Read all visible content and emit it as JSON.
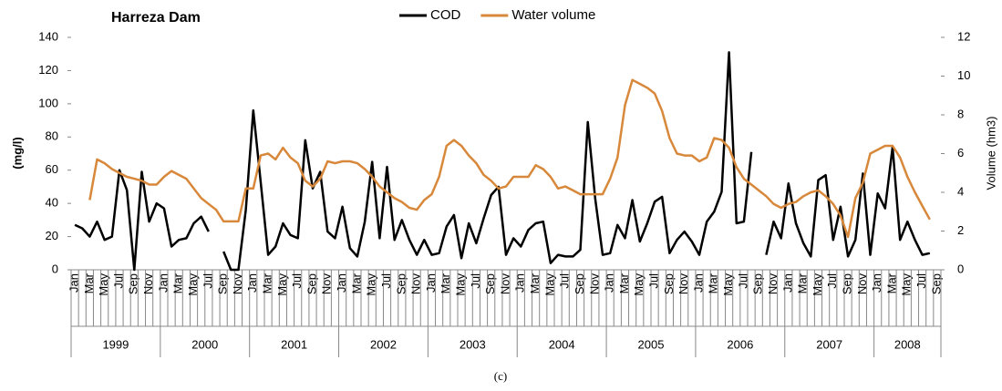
{
  "chart_data": {
    "type": "line",
    "title": "Harreza Dam",
    "caption": "(c)",
    "y_label": "(mg/l)",
    "y2_label": "Volume (hm3)",
    "categories": [
      "Jan",
      null,
      "Mar",
      null,
      "May",
      null,
      "Jul",
      null,
      "Sep",
      null,
      "Nov",
      null,
      "Jan",
      null,
      "Mar",
      null,
      "May",
      null,
      "Jul",
      null,
      "Sep",
      null,
      "Nov",
      null,
      "Jan",
      null,
      "Mar",
      null,
      "May",
      null,
      "Jul",
      null,
      "Sep",
      null,
      "Nov",
      null,
      "Jan",
      null,
      "Mar",
      null,
      "May",
      null,
      "Jul",
      null,
      "Sep",
      null,
      "Nov",
      null,
      "Jan",
      null,
      "Mar",
      null,
      "May",
      null,
      "Jul",
      null,
      "Sep",
      null,
      "Nov",
      null,
      "Jan",
      null,
      "Mar",
      null,
      "May",
      null,
      "Jul",
      null,
      "Sep",
      null,
      "Nov",
      null,
      "Jan",
      null,
      "Mar",
      null,
      "May",
      null,
      "Jul",
      null,
      "Sep",
      null,
      "Nov",
      null,
      "Jan",
      null,
      "Mar",
      null,
      "May",
      null,
      "Jul",
      null,
      "Sep",
      null,
      "Nov",
      null,
      "Jan",
      null,
      "Mar",
      null,
      "May",
      null,
      "Jul",
      null,
      "Sep",
      null,
      "Nov",
      null,
      "Jan",
      null,
      "Mar",
      null,
      "May",
      null,
      "Jul",
      null,
      "Sep"
    ],
    "years": [
      "1999",
      "2000",
      "2001",
      "2002",
      "2003",
      "2004",
      "2005",
      "2006",
      "2007",
      "2008"
    ],
    "ylim": [
      0,
      140
    ],
    "yticks": [
      0,
      20,
      40,
      60,
      80,
      100,
      120,
      140
    ],
    "y2lim": [
      0,
      12
    ],
    "y2ticks": [
      0,
      2,
      4,
      6,
      8,
      10,
      12
    ],
    "series": [
      {
        "name": "COD",
        "color": "#000000",
        "values": [
          27,
          25,
          20,
          29,
          18,
          20,
          60,
          48,
          0,
          59,
          29,
          40,
          37,
          14,
          18,
          19,
          28,
          32,
          23,
          null,
          11,
          0,
          0,
          36,
          96,
          53,
          9,
          14,
          28,
          21,
          19,
          78,
          49,
          59,
          23,
          19,
          38,
          13,
          8,
          29,
          65,
          19,
          62,
          18,
          30,
          18,
          9,
          18,
          9,
          10,
          26,
          33,
          7,
          28,
          16,
          31,
          45,
          50,
          9,
          19,
          14,
          24,
          28,
          29,
          4,
          9,
          8,
          8,
          12,
          89,
          43,
          9,
          10,
          27,
          19,
          42,
          17,
          28,
          41,
          44,
          10,
          18,
          23,
          17,
          9,
          29,
          35,
          47,
          131,
          28,
          29,
          71,
          null,
          9,
          29,
          19,
          52,
          28,
          16,
          8,
          54,
          57,
          18,
          38,
          8,
          18,
          58,
          9,
          46,
          37,
          74,
          18,
          29,
          18,
          9,
          10,
          null
        ]
      },
      {
        "name": "Water volume",
        "color": "#d8883a",
        "axis": "y2",
        "values": [
          null,
          null,
          3.6,
          5.7,
          5.5,
          5.2,
          5.0,
          4.8,
          4.7,
          4.6,
          4.4,
          4.4,
          4.8,
          5.1,
          4.9,
          4.7,
          4.2,
          3.7,
          3.4,
          3.1,
          2.5,
          2.5,
          2.5,
          4.2,
          4.2,
          5.9,
          6.0,
          5.7,
          6.3,
          5.8,
          5.5,
          4.6,
          4.3,
          4.7,
          5.6,
          5.5,
          5.6,
          5.6,
          5.5,
          5.2,
          4.8,
          4.3,
          4.0,
          3.7,
          3.5,
          3.2,
          3.1,
          3.6,
          3.9,
          4.8,
          6.4,
          6.7,
          6.4,
          5.9,
          5.5,
          4.9,
          4.6,
          4.2,
          4.3,
          4.8,
          4.8,
          4.8,
          5.4,
          5.2,
          4.8,
          4.2,
          4.3,
          4.1,
          3.9,
          3.9,
          3.9,
          3.9,
          4.7,
          5.8,
          8.5,
          9.8,
          9.6,
          9.4,
          9.1,
          8.2,
          6.8,
          6.0,
          5.9,
          5.9,
          5.6,
          5.8,
          6.8,
          6.7,
          6.3,
          5.3,
          4.7,
          4.4,
          4.1,
          3.8,
          3.4,
          3.2,
          3.4,
          3.5,
          3.8,
          4.0,
          4.1,
          3.8,
          3.4,
          2.8,
          1.7,
          3.7,
          4.5,
          6.0,
          6.2,
          6.4,
          6.4,
          5.8,
          4.8,
          4.0,
          3.3,
          2.6,
          null
        ]
      }
    ]
  }
}
